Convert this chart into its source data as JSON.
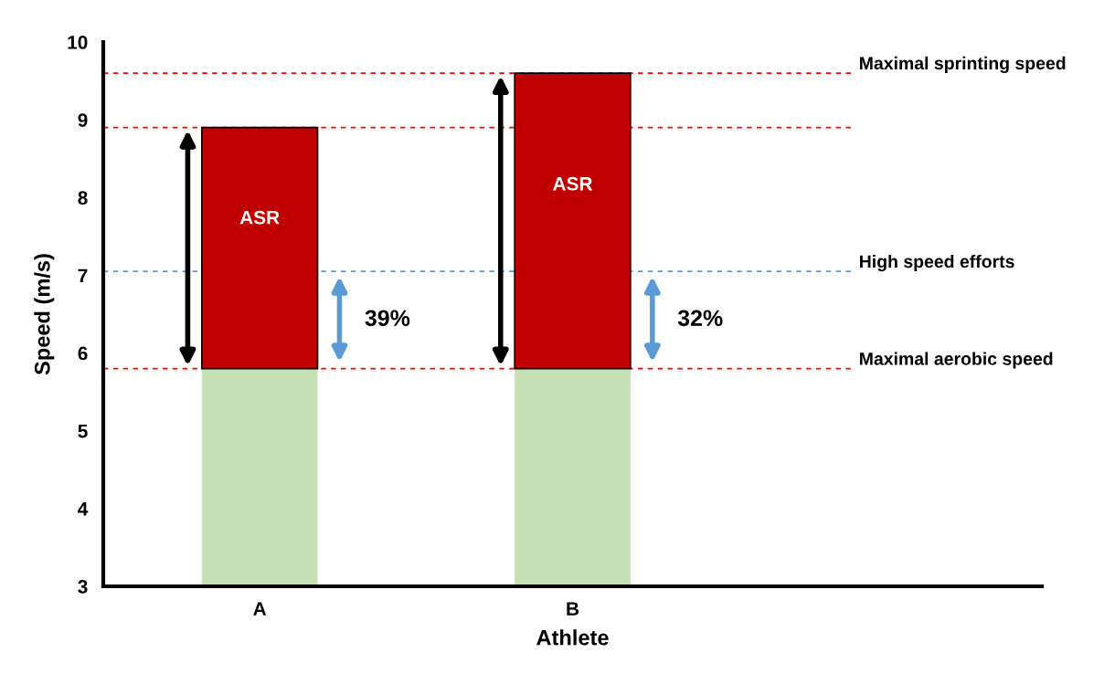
{
  "chart_data": {
    "type": "bar",
    "stacked": true,
    "xlabel": "Athlete",
    "ylabel": "Speed (m/s)",
    "categories": [
      "A",
      "B"
    ],
    "series": [
      {
        "color": "#c5e0b4",
        "values": [
          5.8,
          5.8
        ]
      },
      {
        "color": "#c00000",
        "values": [
          3.1,
          3.8
        ]
      }
    ],
    "ylim": [
      3,
      10
    ],
    "yticks": [
      3,
      4,
      5,
      6,
      7,
      8,
      9,
      10
    ],
    "grid": false,
    "legend": false,
    "ref_lines": [
      {
        "axis": "y",
        "value": 9.6,
        "label": "Maximal sprinting speed",
        "color": "#ff0000",
        "line_style": "dashed"
      },
      {
        "axis": "y",
        "value": 8.9,
        "color": "#ff0000",
        "line_style": "dashed"
      },
      {
        "axis": "y",
        "value": 7.05,
        "label": "High speed efforts",
        "color": "#5b9bd5",
        "line_style": "dashed"
      },
      {
        "axis": "y",
        "value": 5.8,
        "label": "Maximal aerobic speed",
        "color": "#ff0000",
        "line_style": "dashed"
      }
    ],
    "annotations": [
      "ASR",
      "ASR",
      "39%",
      "32%"
    ]
  }
}
